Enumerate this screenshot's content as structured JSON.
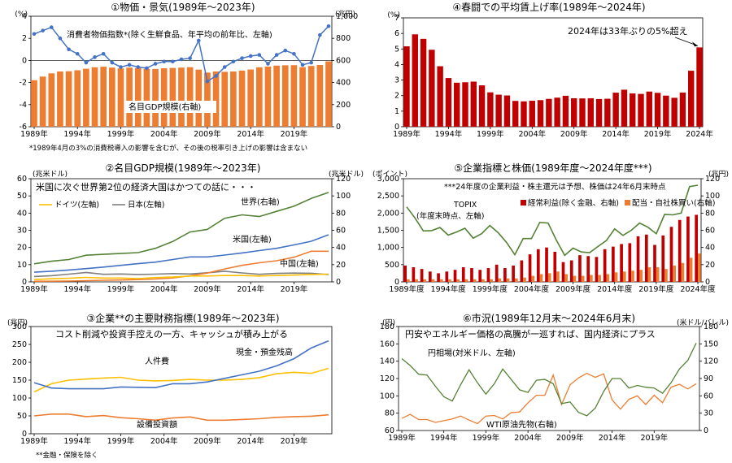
{
  "colors": {
    "orange": "#ED7D31",
    "blue": "#4472C4",
    "darkred": "#C00000",
    "green": "#548235",
    "gold": "#FFC000",
    "gray": "#7F7F7F",
    "axis": "#000000",
    "grid": "#D9D9D9"
  },
  "chart_data": [
    {
      "id": "c1",
      "type": "bar+line",
      "title": "①物価・景気(1989年～2023年)",
      "left_unit": "(%)",
      "right_unit": "(兆円)",
      "left_ticks": [
        "4",
        "2",
        "0",
        "-2",
        "-4",
        "-6"
      ],
      "right_ticks": [
        "1,000",
        "800",
        "600",
        "400",
        "200",
        "0"
      ],
      "ylim_left": [
        -6,
        4
      ],
      "ylim_right": [
        0,
        1000
      ],
      "x_tick_labels": [
        "1989年",
        "1994年",
        "1999年",
        "2004年",
        "2009年",
        "2014年",
        "2019年"
      ],
      "annotations": [
        "消費者物価指数*(除く生鮮食品、年平均の前年比、左軸)",
        "名目GDP規模(右軸)"
      ],
      "footnote": "*1989年4月の3%の消費税導入の影響を含むが、その後の税率引き上げの影響は含まない",
      "x": [
        1989,
        1990,
        1991,
        1992,
        1993,
        1994,
        1995,
        1996,
        1997,
        1998,
        1999,
        2000,
        2001,
        2002,
        2003,
        2004,
        2005,
        2006,
        2007,
        2008,
        2009,
        2010,
        2011,
        2012,
        2013,
        2014,
        2015,
        2016,
        2017,
        2018,
        2019,
        2020,
        2021,
        2022,
        2023
      ],
      "series": [
        {
          "name": "名目GDP規模",
          "axis": "right",
          "type": "bar",
          "values": [
            421,
            454,
            483,
            500,
            502,
            511,
            525,
            538,
            543,
            535,
            528,
            535,
            531,
            524,
            523,
            529,
            532,
            535,
            539,
            517,
            490,
            500,
            497,
            500,
            508,
            518,
            538,
            544,
            553,
            556,
            557,
            539,
            550,
            559,
            591
          ]
        },
        {
          "name": "消費者物価指数",
          "axis": "left",
          "type": "line",
          "values": [
            2.4,
            2.7,
            3.0,
            2.0,
            1.0,
            0.6,
            -0.2,
            0.3,
            0.6,
            -0.2,
            -0.6,
            -0.4,
            -0.6,
            -0.7,
            -0.3,
            -0.1,
            -0.1,
            0.1,
            0.2,
            1.8,
            -1.9,
            -1.4,
            -0.6,
            -0.1,
            0.2,
            0.4,
            0.5,
            -0.3,
            0.5,
            0.9,
            0.6,
            -0.4,
            -0.2,
            2.3,
            3.1
          ]
        }
      ]
    },
    {
      "id": "c4",
      "type": "bar",
      "title": "④春闘での平均賃上げ率(1989年～2024年)",
      "left_unit": "(%)",
      "left_ticks": [
        "7",
        "6",
        "5",
        "4",
        "3",
        "2",
        "1",
        "0"
      ],
      "ylim": [
        0,
        7
      ],
      "x_tick_labels": [
        "1989年",
        "1994年",
        "1999年",
        "2004年",
        "2009年",
        "2014年",
        "2019年",
        "2024年"
      ],
      "annotations": [
        "2024年は33年ぶりの5%超え"
      ],
      "x": [
        1989,
        1990,
        1991,
        1992,
        1993,
        1994,
        1995,
        1996,
        1997,
        1998,
        1999,
        2000,
        2001,
        2002,
        2003,
        2004,
        2005,
        2006,
        2007,
        2008,
        2009,
        2010,
        2011,
        2012,
        2013,
        2014,
        2015,
        2016,
        2017,
        2018,
        2019,
        2020,
        2021,
        2022,
        2023,
        2024
      ],
      "values": [
        5.17,
        5.94,
        5.65,
        4.95,
        3.89,
        3.13,
        2.83,
        2.86,
        2.9,
        2.66,
        2.21,
        2.06,
        2.01,
        1.66,
        1.63,
        1.67,
        1.71,
        1.79,
        1.87,
        1.99,
        1.83,
        1.82,
        1.83,
        1.78,
        1.8,
        2.19,
        2.38,
        2.14,
        2.11,
        2.26,
        2.18,
        2.0,
        1.86,
        2.2,
        3.6,
        5.1
      ]
    },
    {
      "id": "c2",
      "type": "line",
      "title": "②名目GDP規模(1989年～2023年)",
      "left_unit": "(兆米ドル)",
      "right_unit": "(兆米ドル)",
      "left_ticks": [
        "60",
        "50",
        "40",
        "30",
        "20",
        "10",
        "0"
      ],
      "right_ticks": [
        "120",
        "100",
        "80",
        "60",
        "40",
        "20",
        "0"
      ],
      "ylim_left": [
        0,
        60
      ],
      "ylim_right": [
        0,
        120
      ],
      "x_tick_labels": [
        "1989年",
        "1994年",
        "1999年",
        "2004年",
        "2009年",
        "2014年",
        "2019年"
      ],
      "annotations": [
        "米国に次ぐ世界第2位の経済大国はかつての話に・・・",
        "世界(右軸)",
        "米国(左軸)",
        "中国(左軸)"
      ],
      "legend": [
        "ドイツ(左軸)",
        "日本(左軸)"
      ],
      "x": [
        1989,
        1991,
        1993,
        1995,
        1997,
        1999,
        2001,
        2003,
        2005,
        2007,
        2009,
        2011,
        2013,
        2015,
        2017,
        2019,
        2021,
        2023
      ],
      "series": [
        {
          "name": "世界",
          "axis": "right",
          "values": [
            21,
            24,
            26,
            31,
            32,
            33,
            34,
            39,
            47,
            58,
            61,
            74,
            78,
            76,
            82,
            88,
            97,
            104
          ]
        },
        {
          "name": "米国",
          "axis": "left",
          "values": [
            5.6,
            6.2,
            6.9,
            7.7,
            8.6,
            9.6,
            10.6,
            11.5,
            13.0,
            14.5,
            14.5,
            15.6,
            16.8,
            18.2,
            19.5,
            21.5,
            23.6,
            27.4
          ]
        },
        {
          "name": "日本",
          "axis": "left",
          "values": [
            3.1,
            3.6,
            4.5,
            5.5,
            4.4,
            4.6,
            4.3,
            4.5,
            4.8,
            4.6,
            5.3,
            6.2,
            5.2,
            4.4,
            4.9,
            5.1,
            5.0,
            4.2
          ]
        },
        {
          "name": "中国",
          "axis": "left",
          "values": [
            0.35,
            0.38,
            0.45,
            0.73,
            0.96,
            1.09,
            1.34,
            1.66,
            2.29,
            3.55,
            5.1,
            7.5,
            9.6,
            11.1,
            12.3,
            14.3,
            17.8,
            17.8
          ]
        },
        {
          "name": "ドイツ",
          "axis": "left",
          "values": [
            1.3,
            1.8,
            2.1,
            2.6,
            2.2,
            2.2,
            1.9,
            2.5,
            2.8,
            3.4,
            3.4,
            3.7,
            3.7,
            3.4,
            3.7,
            3.9,
            4.3,
            4.5
          ]
        }
      ]
    },
    {
      "id": "c5",
      "type": "bar+line",
      "title": "⑤企業指標と株価(1989年度～2024年度***)",
      "left_unit": "(ポイント)",
      "right_unit": "(兆円)",
      "left_ticks": [
        "3,000",
        "2,500",
        "2,000",
        "1,500",
        "1,000",
        "500",
        "0"
      ],
      "right_ticks": [
        "120",
        "100",
        "80",
        "60",
        "40",
        "20",
        "0"
      ],
      "ylim_left": [
        0,
        3000
      ],
      "ylim_right": [
        0,
        120
      ],
      "x_tick_labels": [
        "1989年度",
        "1994年度",
        "1999年度",
        "2004年度",
        "2009年度",
        "2014年度",
        "2019年度",
        "2024年度"
      ],
      "annotations": [
        "***24年度の企業利益・株主還元は予想、株価は24年6月末時点",
        "TOPIX",
        "(年度末時点、左軸)"
      ],
      "legend": [
        "経常利益(除く金融、右軸)",
        "配当・自社株買い(右軸)"
      ],
      "x": [
        1989,
        1990,
        1991,
        1992,
        1993,
        1994,
        1995,
        1996,
        1997,
        1998,
        1999,
        2000,
        2001,
        2002,
        2003,
        2004,
        2005,
        2006,
        2007,
        2008,
        2009,
        2010,
        2011,
        2012,
        2013,
        2014,
        2015,
        2016,
        2017,
        2018,
        2019,
        2020,
        2021,
        2022,
        2023,
        2024
      ],
      "series": [
        {
          "name": "TOPIX",
          "axis": "left",
          "values": [
            2180,
            1860,
            1480,
            1490,
            1580,
            1360,
            1450,
            1560,
            1270,
            1400,
            1640,
            1430,
            1150,
            790,
            1260,
            1260,
            1730,
            1710,
            1210,
            770,
            980,
            870,
            850,
            1030,
            1200,
            1540,
            1350,
            1500,
            1710,
            1590,
            1400,
            1960,
            1950,
            2000,
            2770,
            2810
          ]
        },
        {
          "name": "経常利益",
          "axis": "right",
          "values": [
            19,
            17,
            15,
            12,
            10,
            12,
            14,
            17,
            16,
            14,
            16,
            20,
            16,
            19,
            25,
            32,
            38,
            40,
            35,
            23,
            25,
            31,
            30,
            29,
            38,
            41,
            44,
            45,
            53,
            55,
            43,
            54,
            64,
            72,
            76,
            78
          ]
        },
        {
          "name": "配当・自社株買い",
          "axis": "right",
          "values": [
            3,
            3,
            3,
            3,
            3,
            3,
            3,
            3,
            3,
            3,
            3,
            4,
            4,
            4,
            5,
            7,
            9,
            10,
            12,
            9,
            7,
            7,
            8,
            8,
            9,
            11,
            12,
            13,
            14,
            17,
            17,
            15,
            19,
            22,
            28,
            33
          ]
        }
      ]
    },
    {
      "id": "c3",
      "type": "line",
      "title": "③企業**の主要財務指標(1989年～2023年)",
      "left_unit": "(兆円)",
      "left_ticks": [
        "300",
        "250",
        "200",
        "150",
        "100",
        "50",
        "0"
      ],
      "ylim": [
        0,
        300
      ],
      "x_tick_labels": [
        "1989年",
        "1994年",
        "1999年",
        "2004年",
        "2009年",
        "2014年",
        "2019年"
      ],
      "annotations": [
        "コスト削減や投資手控えの一方、キャッシュが積み上がる",
        "人件費",
        "現金・預金残高",
        "設備投資額"
      ],
      "footnote": "**金融・保険を除く",
      "x": [
        1989,
        1991,
        1993,
        1995,
        1997,
        1999,
        2001,
        2003,
        2005,
        2007,
        2009,
        2011,
        2013,
        2015,
        2017,
        2019,
        2021,
        2023
      ],
      "series": [
        {
          "name": "人件費",
          "values": [
            117,
            140,
            150,
            153,
            156,
            158,
            150,
            148,
            149,
            152,
            150,
            150,
            152,
            157,
            168,
            172,
            169,
            183
          ]
        },
        {
          "name": "現金・預金残高",
          "values": [
            143,
            128,
            126,
            126,
            126,
            131,
            130,
            129,
            140,
            140,
            145,
            155,
            165,
            175,
            190,
            210,
            240,
            260
          ]
        },
        {
          "name": "設備投資額",
          "values": [
            50,
            55,
            55,
            48,
            51,
            45,
            42,
            38,
            44,
            47,
            38,
            38,
            40,
            42,
            46,
            48,
            49,
            53
          ]
        }
      ]
    },
    {
      "id": "c6",
      "type": "line",
      "title": "⑥市況(1989年12月末～2024年6月末)",
      "left_unit": "(円)",
      "right_unit": "(米ドル/バレル)",
      "left_ticks": [
        "180",
        "160",
        "140",
        "120",
        "100",
        "80",
        "60"
      ],
      "right_ticks": [
        "180",
        "150",
        "120",
        "90",
        "60",
        "30",
        "0"
      ],
      "ylim_left": [
        60,
        180
      ],
      "ylim_right": [
        0,
        180
      ],
      "x_tick_labels": [
        "1989年",
        "1994年",
        "1999年",
        "2004年",
        "2009年",
        "2014年",
        "2019年"
      ],
      "annotations": [
        "円安やエネルギー価格の高騰が一巡すれば、国内経済にプラス",
        "円相場(対米ドル、左軸)",
        "WTI原油先物(右軸)"
      ],
      "x": [
        1989,
        1990,
        1991,
        1992,
        1993,
        1994,
        1995,
        1996,
        1997,
        1998,
        1999,
        2000,
        2001,
        2002,
        2003,
        2004,
        2005,
        2006,
        2007,
        2008,
        2009,
        2010,
        2011,
        2012,
        2013,
        2014,
        2015,
        2016,
        2017,
        2018,
        2019,
        2020,
        2021,
        2022,
        2023,
        2024
      ],
      "series": [
        {
          "name": "円相場",
          "axis": "left",
          "values": [
            143,
            135,
            125,
            124,
            111,
            99,
            94,
            113,
            130,
            115,
            102,
            114,
            131,
            119,
            107,
            104,
            118,
            119,
            114,
            91,
            93,
            81,
            77,
            86,
            105,
            120,
            120,
            109,
            112,
            110,
            109,
            103,
            115,
            131,
            141,
            161
          ]
        },
        {
          "name": "WTI原油先物",
          "axis": "right",
          "values": [
            21,
            28,
            19,
            19,
            14,
            17,
            20,
            25,
            18,
            12,
            25,
            26,
            20,
            31,
            32,
            48,
            61,
            61,
            96,
            45,
            79,
            91,
            99,
            92,
            98,
            53,
            37,
            54,
            60,
            45,
            61,
            48,
            75,
            80,
            72,
            81
          ]
        }
      ]
    }
  ]
}
